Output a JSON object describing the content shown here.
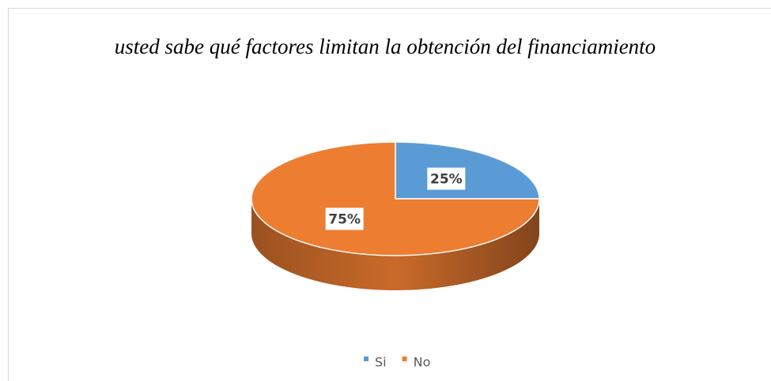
{
  "chart_data": {
    "type": "pie",
    "title": "usted sabe qué factores limitan la obtención del financiamiento",
    "categories": [
      "Si",
      "No"
    ],
    "values": [
      25,
      75
    ],
    "value_labels": [
      "25%",
      "75%"
    ],
    "colors": [
      "#5b9bd5",
      "#ed7d31"
    ],
    "legend": "bottom"
  }
}
